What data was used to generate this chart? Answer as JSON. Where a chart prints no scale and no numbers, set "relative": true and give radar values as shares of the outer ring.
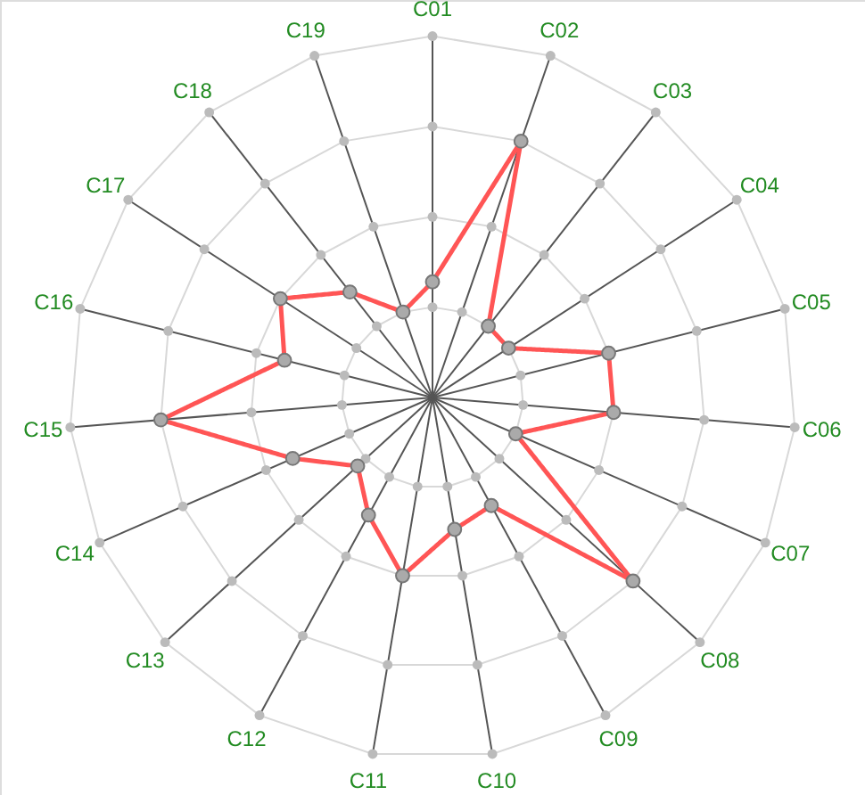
{
  "chart_data": {
    "type": "radar",
    "relative": true,
    "categories": [
      "C01",
      "C02",
      "C03",
      "C04",
      "C05",
      "C06",
      "C07",
      "C08",
      "C09",
      "C10",
      "C11",
      "C12",
      "C13",
      "C14",
      "C15",
      "C16",
      "C17",
      "C18",
      "C19"
    ],
    "series": [
      {
        "color": "#ff5555",
        "values": [
          0.32,
          0.75,
          0.25,
          0.25,
          0.5,
          0.5,
          0.25,
          0.75,
          0.34,
          0.37,
          0.5,
          0.37,
          0.28,
          0.42,
          0.75,
          0.42,
          0.5,
          0.37,
          0.25
        ]
      }
    ],
    "grid": true,
    "marker": "circle",
    "line_style": "solid",
    "legend": false
  }
}
